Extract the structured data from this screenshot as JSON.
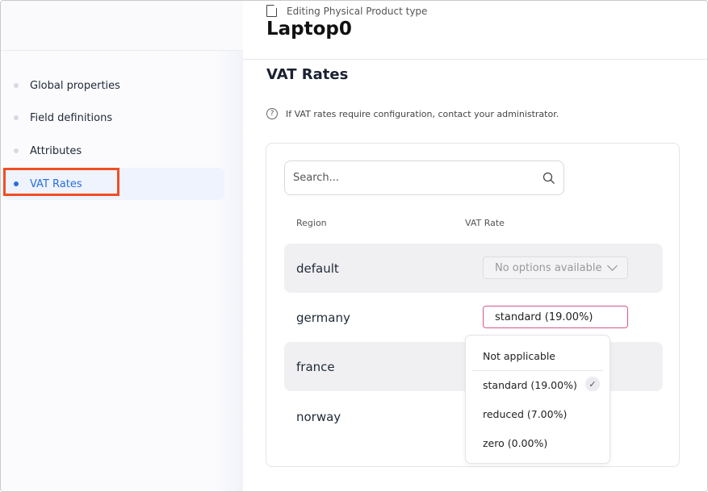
{
  "sidebar": {
    "items": [
      {
        "label": "Global properties"
      },
      {
        "label": "Field definitions"
      },
      {
        "label": "Attributes"
      },
      {
        "label": "VAT Rates",
        "active": true
      }
    ]
  },
  "header": {
    "subtitle": "Editing Physical Product type",
    "title": "Laptop0"
  },
  "section": {
    "title": "VAT Rates",
    "info": "If VAT rates require configuration, contact your administrator."
  },
  "search": {
    "placeholder": "Search..."
  },
  "table": {
    "headers": [
      "Region",
      "VAT Rate"
    ],
    "rows": [
      {
        "region": "default",
        "value": "No options available",
        "disabled": true
      },
      {
        "region": "germany",
        "value": "standard (19.00%)",
        "open": true
      },
      {
        "region": "france",
        "value": ""
      },
      {
        "region": "norway",
        "value": ""
      }
    ]
  },
  "dropdown": {
    "options": [
      "Not applicable",
      "standard (19.00%)",
      "reduced (7.00%)",
      "zero (0.00%)"
    ],
    "selected": "standard (19.00%)"
  },
  "colors": {
    "accent": "#2a6de0",
    "highlight": "#f04e23",
    "focus": "#d9578a"
  }
}
